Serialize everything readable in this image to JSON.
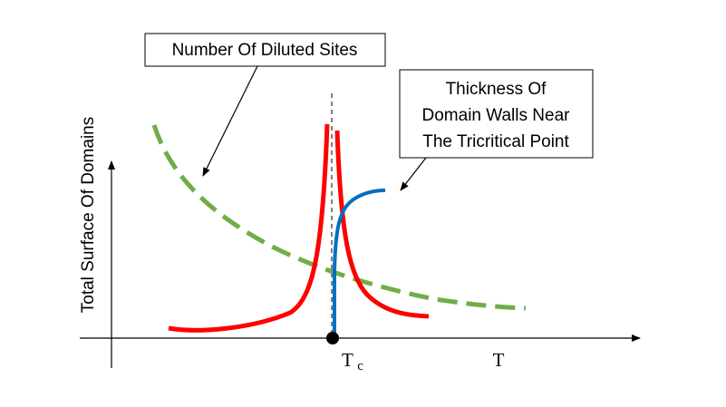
{
  "labels": {
    "diluted_sites": "Number Of Diluted Sites",
    "domain_walls_line1": "Thickness Of",
    "domain_walls_line2": "Domain Walls Near",
    "domain_walls_line3": "The Tricritical Point"
  },
  "axes": {
    "y_label": "Total Surface Of Domains",
    "x_label": "T",
    "tc_main": "T",
    "tc_sub": "c"
  },
  "colors": {
    "red_curve": "#ff0000",
    "green_curve": "#70ad47",
    "blue_curve": "#0070c0",
    "axis": "#000000"
  }
}
